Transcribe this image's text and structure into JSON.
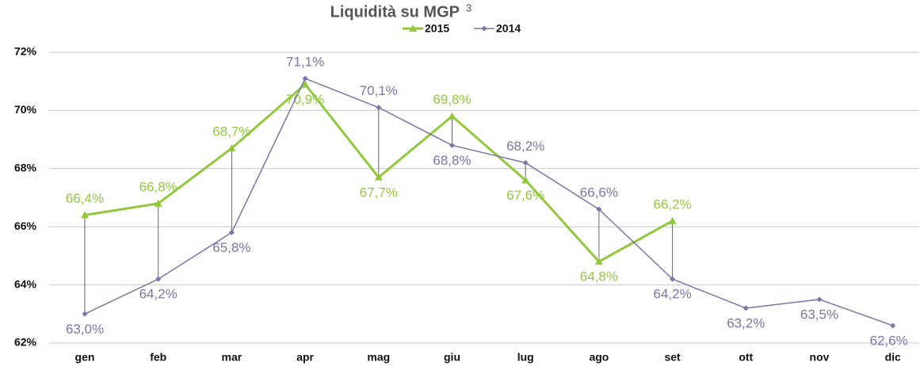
{
  "chart_data": {
    "type": "line",
    "title": "Liquidità su MGP",
    "title_note": "3",
    "categories": [
      "gen",
      "feb",
      "mar",
      "apr",
      "mag",
      "giu",
      "lug",
      "ago",
      "set",
      "ott",
      "nov",
      "dic"
    ],
    "series": [
      {
        "name": "2015",
        "color": "#92c83e",
        "marker": "triangle",
        "values": [
          66.4,
          66.8,
          68.7,
          70.9,
          67.7,
          69.8,
          67.6,
          64.8,
          66.2,
          null,
          null,
          null
        ],
        "value_labels": [
          "66,4%",
          "66,8%",
          "68,7%",
          "70,9%",
          "67,7%",
          "69,8%",
          "67,6%",
          "64,8%",
          "66,2%",
          null,
          null,
          null
        ]
      },
      {
        "name": "2014",
        "color": "#7b74a8",
        "marker": "diamond",
        "values": [
          63.0,
          64.2,
          65.8,
          71.1,
          70.1,
          68.8,
          68.2,
          66.6,
          64.2,
          63.2,
          63.5,
          62.6
        ],
        "value_labels": [
          "63,0%",
          "64,2%",
          "65,8%",
          "71,1%",
          "70,1%",
          "68,8%",
          "68,2%",
          "66,6%",
          "64,2%",
          "63,2%",
          "63,5%",
          "62,6%"
        ]
      }
    ],
    "ylim": [
      62,
      72
    ],
    "yticks": [
      {
        "value": 62,
        "label": "62%"
      },
      {
        "value": 64,
        "label": "64%"
      },
      {
        "value": 66,
        "label": "66%"
      },
      {
        "value": 68,
        "label": "68%"
      },
      {
        "value": 70,
        "label": "70%"
      },
      {
        "value": 72,
        "label": "72%"
      }
    ],
    "grid": true,
    "legend": "top",
    "drop_lines": true
  }
}
